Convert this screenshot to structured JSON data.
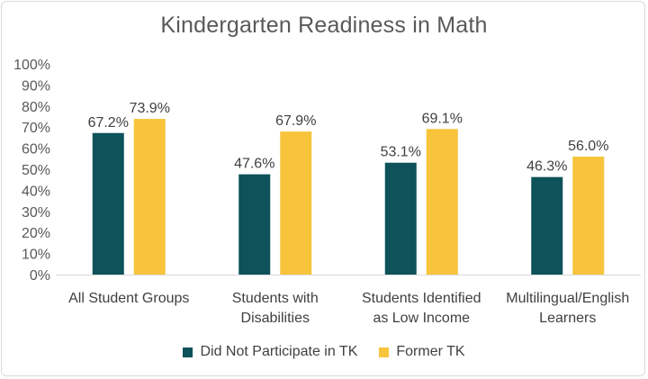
{
  "chart_data": {
    "type": "bar",
    "title": "Kindergarten Readiness in Math",
    "categories": [
      [
        "All Student Groups"
      ],
      [
        "Students with",
        "Disabilities"
      ],
      [
        "Students Identified",
        "as Low Income"
      ],
      [
        "Multilingual/English",
        "Learners"
      ]
    ],
    "series": [
      {
        "name": "Did Not Participate in TK",
        "color": "#0e525a",
        "values": [
          67.2,
          47.6,
          53.1,
          46.3
        ],
        "labels": [
          "67.2%",
          "47.6%",
          "53.1%",
          "46.3%"
        ]
      },
      {
        "name": "Former TK",
        "color": "#f7c43c",
        "values": [
          73.9,
          67.9,
          69.1,
          56.0
        ],
        "labels": [
          "73.9%",
          "67.9%",
          "69.1%",
          "56.0%"
        ]
      }
    ],
    "y_ticks": [
      "0%",
      "10%",
      "20%",
      "30%",
      "40%",
      "50%",
      "60%",
      "70%",
      "80%",
      "90%",
      "100%"
    ],
    "ylim": [
      0,
      100
    ],
    "grid": false,
    "legend_position": "bottom"
  }
}
